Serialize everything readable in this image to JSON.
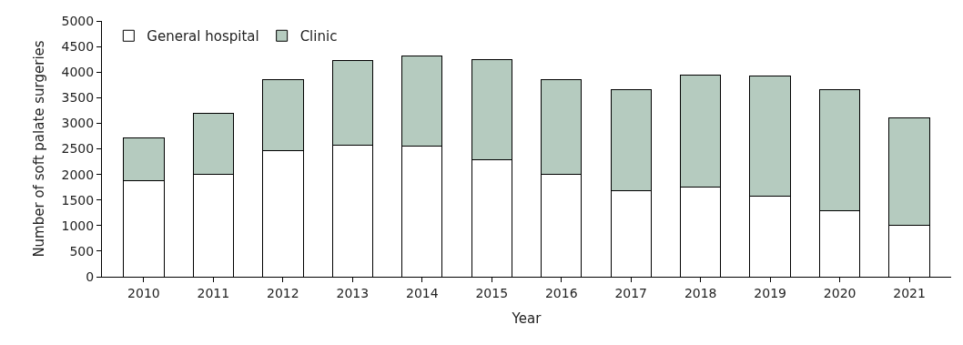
{
  "chart_data": {
    "type": "bar",
    "stacked": true,
    "xlabel": "Year",
    "ylabel": "Number of soft palate surgeries",
    "categories": [
      "2010",
      "2011",
      "2012",
      "2013",
      "2014",
      "2015",
      "2016",
      "2017",
      "2018",
      "2019",
      "2020",
      "2021"
    ],
    "series": [
      {
        "name": "General hospital",
        "color": "#ffffff",
        "values": [
          1880,
          2010,
          2470,
          2580,
          2550,
          2280,
          2010,
          1680,
          1760,
          1570,
          1290,
          1000
        ]
      },
      {
        "name": "Clinic",
        "color": "#b5cbbf",
        "values": [
          840,
          1190,
          1390,
          1640,
          1770,
          1970,
          1850,
          1970,
          2190,
          2360,
          2360,
          2100
        ]
      }
    ],
    "ylim": [
      0,
      5000
    ],
    "yticks": [
      0,
      500,
      1000,
      1500,
      2000,
      2500,
      3000,
      3500,
      4000,
      4500,
      5000
    ],
    "legend": "top left"
  }
}
